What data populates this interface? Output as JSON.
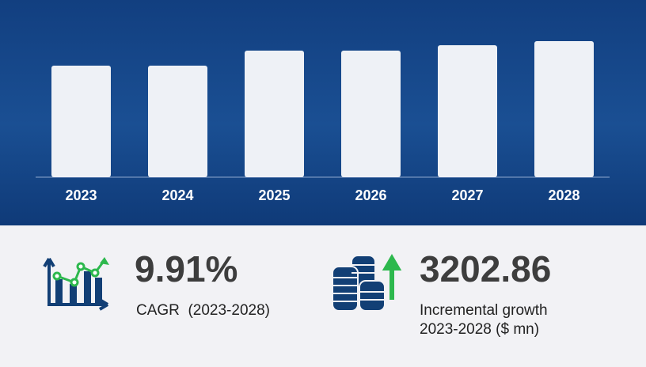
{
  "chart_data": {
    "type": "bar",
    "categories": [
      "2023",
      "2024",
      "2025",
      "2026",
      "2027",
      "2028"
    ],
    "values": [
      82,
      82,
      93,
      93,
      97,
      100
    ],
    "ylim": [
      0,
      100
    ],
    "grid": false,
    "colors": {
      "bar": "#eef1f6",
      "background": "#174a8c",
      "label": "#ffffff"
    }
  },
  "stats": {
    "cagr_value": "9.91%",
    "cagr_label": "CAGR  (2023-2028)",
    "growth_value": "3202.86",
    "growth_label_line1": "Incremental growth",
    "growth_label_line2": "2023-2028 ($ mn)"
  },
  "icons": {
    "cagr": "growth-chart-icon",
    "growth": "coins-arrow-up-icon"
  },
  "colors": {
    "navy": "#123f75",
    "green": "#2db84d"
  }
}
